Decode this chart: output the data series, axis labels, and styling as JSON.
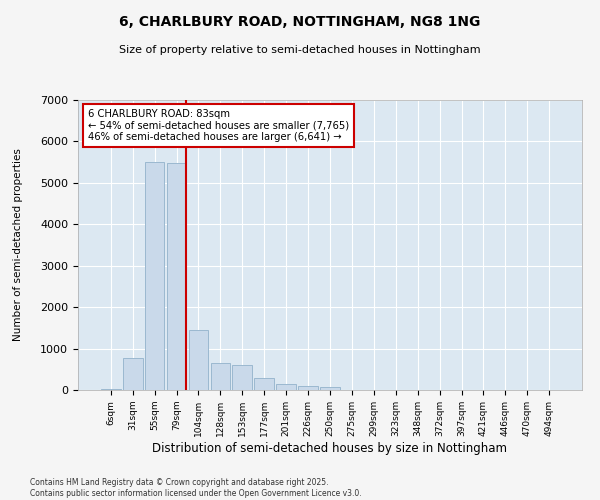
{
  "title_line1": "6, CHARLBURY ROAD, NOTTINGHAM, NG8 1NG",
  "title_line2": "Size of property relative to semi-detached houses in Nottingham",
  "xlabel": "Distribution of semi-detached houses by size in Nottingham",
  "ylabel": "Number of semi-detached properties",
  "bar_color": "#c9d9ea",
  "bar_edge_color": "#9bb8d0",
  "background_color": "#dce8f2",
  "grid_color": "#ffffff",
  "vline_color": "#cc0000",
  "annotation_title": "6 CHARLBURY ROAD: 83sqm",
  "annotation_line2": "← 54% of semi-detached houses are smaller (7,765)",
  "annotation_line3": "46% of semi-detached houses are larger (6,641) →",
  "footer_line1": "Contains HM Land Registry data © Crown copyright and database right 2025.",
  "footer_line2": "Contains public sector information licensed under the Open Government Licence v3.0.",
  "categories": [
    "6sqm",
    "31sqm",
    "55sqm",
    "79sqm",
    "104sqm",
    "128sqm",
    "153sqm",
    "177sqm",
    "201sqm",
    "226sqm",
    "250sqm",
    "275sqm",
    "299sqm",
    "323sqm",
    "348sqm",
    "372sqm",
    "397sqm",
    "421sqm",
    "446sqm",
    "470sqm",
    "494sqm"
  ],
  "values": [
    15,
    780,
    5500,
    5480,
    1450,
    640,
    610,
    300,
    145,
    95,
    75,
    0,
    0,
    0,
    0,
    0,
    0,
    0,
    0,
    0,
    0
  ],
  "ylim": [
    0,
    7000
  ],
  "yticks": [
    0,
    1000,
    2000,
    3000,
    4000,
    5000,
    6000,
    7000
  ],
  "vline_pos": 3.45,
  "fig_bg": "#f5f5f5"
}
